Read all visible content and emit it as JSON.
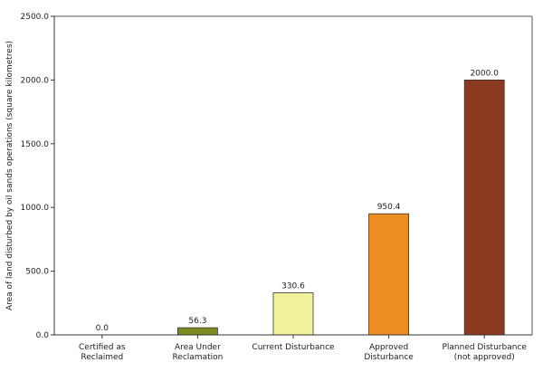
{
  "chart_data": {
    "type": "bar",
    "title": "",
    "xlabel": "",
    "ylabel": "Area of land disturbed by oil sands operations (square kilometres)",
    "ylim": [
      0,
      2500
    ],
    "yticks": [
      0,
      500,
      1000,
      1500,
      2000,
      2500
    ],
    "ytick_labels": [
      "0.0",
      "500.0",
      "1000.0",
      "1500.0",
      "2000.0",
      "2500.0"
    ],
    "categories": [
      "Certified as Reclaimed",
      "Area Under Reclamation",
      "Current Disturbance",
      "Approved Disturbance",
      "Planned Disturbance (not approved)"
    ],
    "values": [
      0.0,
      56.3,
      330.6,
      950.4,
      2000.0
    ],
    "value_labels": [
      "0.0",
      "56.3",
      "330.6",
      "950.4",
      "2000.0"
    ],
    "colors": [
      "#4a6b1a",
      "#7e8a1f",
      "#f3f29c",
      "#ec8d21",
      "#8b3a1f"
    ],
    "grid": false,
    "legend": "none"
  }
}
